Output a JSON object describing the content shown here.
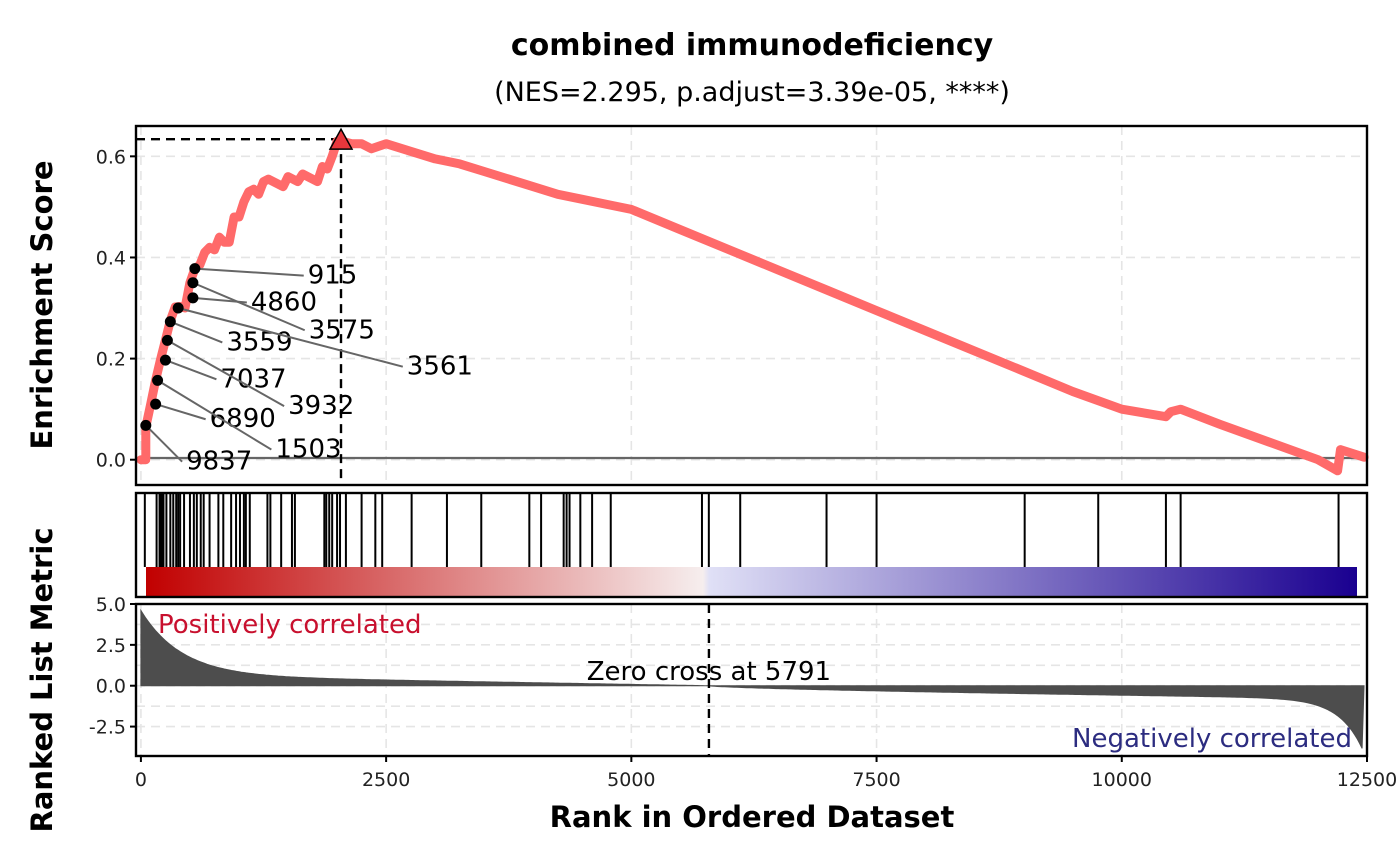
{
  "chart_data": {
    "type": "line",
    "title": "combined immunodeficiency",
    "subtitle": "(NES=2.295, p.adjust=3.39e-05, ****)",
    "xlabel": "Rank in Ordered Dataset",
    "ylabel_es": "Enrichment Score",
    "ylabel_rank": "Ranked List Metric",
    "xlim": [
      -50,
      12500
    ],
    "x_ticks": [
      0,
      2500,
      5000,
      7500,
      10000,
      12500
    ],
    "x_tick_labels": [
      "0",
      "2500",
      "5000",
      "7500",
      "10000",
      "12500"
    ],
    "es_ylim": [
      -0.05,
      0.66
    ],
    "es_ticks": [
      0.0,
      0.2,
      0.4,
      0.6
    ],
    "es_tick_labels": [
      "0.0",
      "0.2",
      "0.4",
      "0.6"
    ],
    "rank_ylim": [
      -4.3,
      5.0
    ],
    "rank_ticks": [
      5.0,
      2.5,
      0.0,
      -2.5
    ],
    "rank_tick_labels": [
      "5.0",
      "2.5",
      "0.0",
      "-2.5"
    ],
    "grid": true,
    "colors": {
      "es_line": "#ff6a6a",
      "peak_marker": "#e8373c",
      "rank_fill": "#4d4d4d",
      "positive": "#c8102e",
      "negative": "#2c2c80",
      "gradient_start": "#c10000",
      "gradient_mid": "#f6eeee",
      "gradient_mid2": "#e0e0f6",
      "gradient_end": "#1a0090"
    },
    "series": [
      {
        "x": [
          0,
          50,
          50,
          100,
          150,
          200,
          250,
          300,
          350,
          400,
          450,
          500,
          550,
          600,
          650,
          700,
          750,
          800,
          850,
          900,
          950,
          1000,
          1050,
          1100,
          1150,
          1200,
          1250,
          1300,
          1350,
          1400,
          1450,
          1500,
          1550,
          1600,
          1650,
          1700,
          1750,
          1800,
          1850,
          1900,
          1950,
          2000,
          2050,
          2150,
          2250,
          2350,
          2500,
          2750,
          3000,
          3250,
          3500,
          3750,
          4000,
          4250,
          4500,
          4750,
          5000,
          5500,
          6000,
          6500,
          7000,
          7500,
          8000,
          8500,
          9000,
          9500,
          10000,
          10450,
          10500,
          10600,
          11000,
          11500,
          12000,
          12200,
          12230,
          12470
        ],
        "y": [
          0.0,
          0.0,
          0.065,
          0.11,
          0.157,
          0.198,
          0.236,
          0.275,
          0.302,
          0.303,
          0.3,
          0.35,
          0.378,
          0.385,
          0.41,
          0.42,
          0.415,
          0.44,
          0.43,
          0.43,
          0.48,
          0.48,
          0.51,
          0.53,
          0.535,
          0.525,
          0.55,
          0.555,
          0.55,
          0.545,
          0.54,
          0.56,
          0.555,
          0.55,
          0.565,
          0.56,
          0.555,
          0.55,
          0.58,
          0.575,
          0.6,
          0.63,
          0.63,
          0.625,
          0.625,
          0.615,
          0.625,
          0.61,
          0.595,
          0.585,
          0.57,
          0.555,
          0.54,
          0.525,
          0.515,
          0.505,
          0.495,
          0.455,
          0.415,
          0.375,
          0.335,
          0.295,
          0.255,
          0.215,
          0.175,
          0.135,
          0.1,
          0.085,
          0.095,
          0.1,
          0.07,
          0.035,
          0.0,
          -0.022,
          0.02,
          0.005
        ]
      }
    ],
    "peak": {
      "x": 2040,
      "y": 0.634
    },
    "hits": [
      40,
      160,
      190,
      210,
      230,
      260,
      300,
      330,
      360,
      380,
      400,
      440,
      500,
      540,
      570,
      610,
      640,
      700,
      790,
      840,
      920,
      970,
      1010,
      1050,
      1070,
      1110,
      1290,
      1320,
      1430,
      1540,
      1570,
      1870,
      1890,
      1920,
      1950,
      2000,
      2030,
      2090,
      2250,
      2390,
      2460,
      2760,
      3120,
      3470,
      3960,
      4080,
      4310,
      4340,
      4370,
      4480,
      4600,
      4790,
      5720,
      5790,
      6110,
      6990,
      7500,
      9010,
      9760,
      10450,
      10600,
      12210
    ],
    "hit_points": [
      {
        "x": 50,
        "y": 0.068,
        "label": "9837",
        "lx": 420,
        "ly": 0.0
      },
      {
        "x": 150,
        "y": 0.11,
        "label": "6890",
        "lx": 660,
        "ly": 0.084
      },
      {
        "x": 170,
        "y": 0.157,
        "label": "1503",
        "lx": 1330,
        "ly": 0.024
      },
      {
        "x": 250,
        "y": 0.197,
        "label": "7037",
        "lx": 770,
        "ly": 0.163
      },
      {
        "x": 270,
        "y": 0.236,
        "label": "3932",
        "lx": 1460,
        "ly": 0.11
      },
      {
        "x": 300,
        "y": 0.273,
        "label": "3559",
        "lx": 830,
        "ly": 0.236
      },
      {
        "x": 380,
        "y": 0.3,
        "label": "3561",
        "lx": 2670,
        "ly": 0.188
      },
      {
        "x": 530,
        "y": 0.32,
        "label": "4860",
        "lx": 1080,
        "ly": 0.315
      },
      {
        "x": 530,
        "y": 0.35,
        "label": "3575",
        "lx": 1670,
        "ly": 0.26
      },
      {
        "x": 550,
        "y": 0.378,
        "label": "915",
        "lx": 1660,
        "ly": 0.368
      }
    ],
    "ranked_metric": {
      "start": 4.6,
      "end": -4.1,
      "zero_cross": 5791,
      "zero_cross_label": "Zero cross at 5791",
      "positive_label": "Positively correlated",
      "negative_label": "Negatively correlated"
    }
  }
}
